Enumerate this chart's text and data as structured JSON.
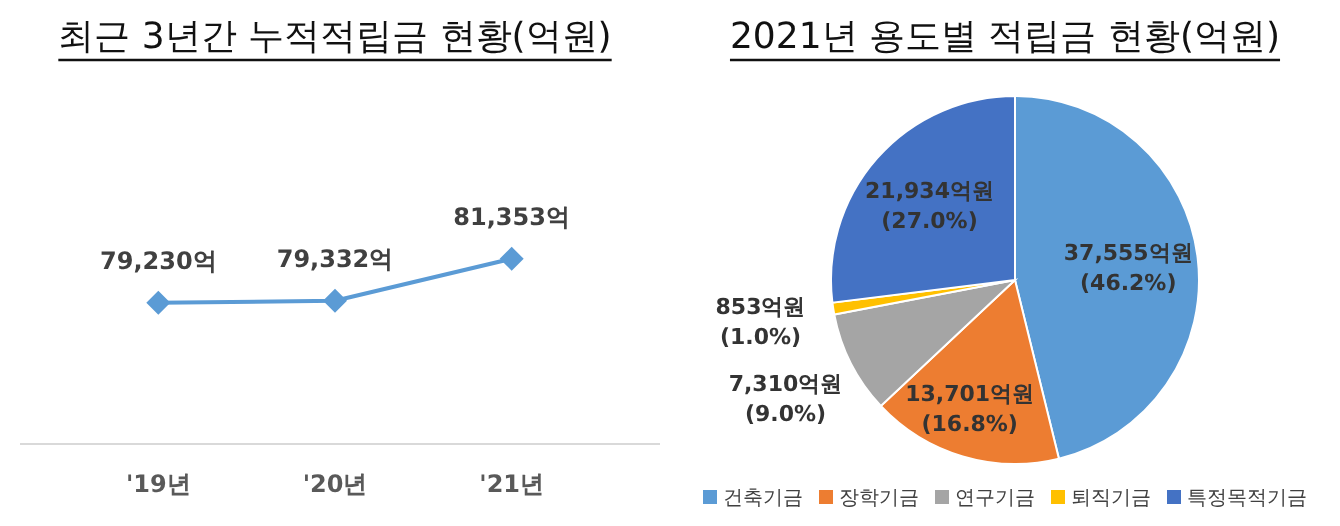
{
  "chart_data": [
    {
      "type": "line",
      "title": "최근 3년간 누적적립금 현황(억원)",
      "categories": [
        "'19년",
        "'20년",
        "'21년"
      ],
      "values": [
        79230,
        79332,
        81353
      ],
      "value_labels": [
        "79,230억",
        "79,332억",
        "81,353억"
      ],
      "color": "#5b9bd5",
      "marker": "diamond"
    },
    {
      "type": "pie",
      "title": "2021년 용도별 적립금 현황(억원)",
      "categories": [
        "건축기금",
        "장학기금",
        "연구기금",
        "퇴직기금",
        "특정목적기금"
      ],
      "values": [
        37555,
        13701,
        7310,
        853,
        21934
      ],
      "value_labels": [
        "37,555억원 (46.2%)",
        "13,701억원 (16.8%)",
        "7,310억원 (9.0%)",
        "853억원 (1.0%)",
        "21,934억원 (27.0%)"
      ],
      "colors": [
        "#5b9bd5",
        "#ed7d31",
        "#a5a5a5",
        "#ffc000",
        "#4472c4"
      ],
      "legend": "bottom"
    }
  ]
}
